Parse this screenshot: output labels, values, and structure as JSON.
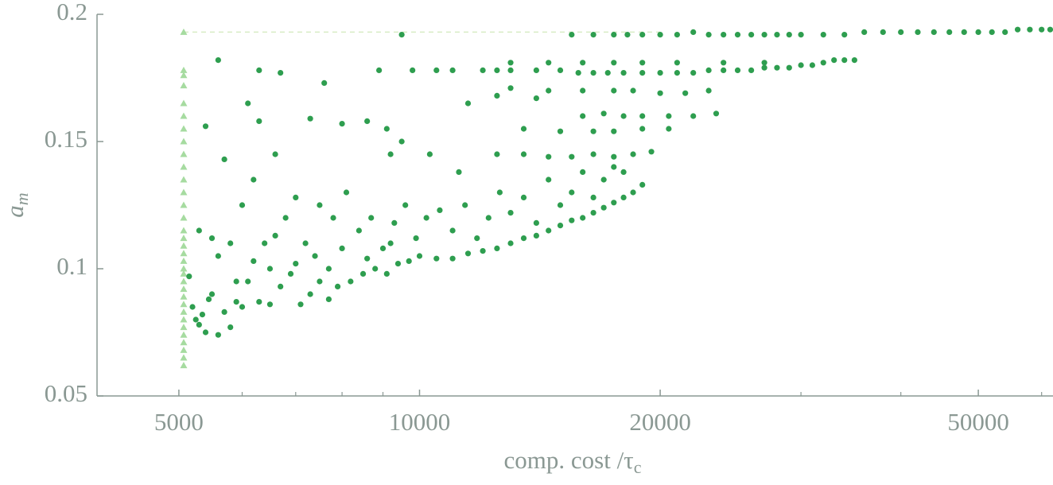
{
  "chart_data": {
    "type": "scatter",
    "xlabel": {
      "text": "comp. cost /τ",
      "subscript": "c"
    },
    "ylabel": {
      "text": "a",
      "subscript": "m"
    },
    "xscale": "log",
    "xlim": [
      3950,
      62000
    ],
    "xticks": [
      5000,
      10000,
      20000,
      50000
    ],
    "xminorticks": [
      6000,
      7000,
      8000,
      9000,
      30000,
      40000,
      60000
    ],
    "ylim": [
      0.05,
      0.2
    ],
    "yticks": [
      0.05,
      0.1,
      0.15,
      0.2
    ],
    "reference_line": {
      "value": 0.193,
      "x": [
        5070,
        20000
      ],
      "color": "#d8ecc4"
    },
    "series": [
      {
        "marker": "triangle",
        "color": "#a6dba0",
        "x": [
          5070,
          5070,
          5070,
          5070,
          5070,
          5070,
          5070,
          5070,
          5070,
          5070,
          5070,
          5070,
          5070,
          5070,
          5070,
          5070,
          5070,
          5070,
          5070,
          5070,
          5070,
          5070,
          5070,
          5070,
          5070,
          5070,
          5070,
          5070,
          5070,
          5070,
          5070,
          5070,
          5070
        ],
        "values": [
          0.062,
          0.065,
          0.068,
          0.071,
          0.074,
          0.077,
          0.08,
          0.083,
          0.086,
          0.089,
          0.092,
          0.095,
          0.098,
          0.1,
          0.103,
          0.106,
          0.109,
          0.112,
          0.115,
          0.12,
          0.125,
          0.13,
          0.135,
          0.14,
          0.145,
          0.15,
          0.155,
          0.16,
          0.165,
          0.172,
          0.176,
          0.178,
          0.193
        ]
      },
      {
        "marker": "circle",
        "color": "#2e9e4f",
        "x": [
          9500,
          15500,
          16500,
          17500,
          18200,
          19000,
          20000,
          21000,
          22000,
          23000,
          24000,
          25000,
          26000,
          27000,
          28000,
          29000,
          30000,
          32000,
          34000,
          36000,
          38000,
          40000,
          42000,
          44000,
          46000,
          48000,
          50000,
          52000,
          54000,
          56000,
          58000,
          60000,
          61500,
          8900,
          9800,
          10500,
          11000,
          12000,
          12500,
          13000,
          14000,
          15000,
          15800,
          16500,
          17200,
          18000,
          19000,
          20000,
          21000,
          22000,
          23000,
          24000,
          25000,
          26000,
          27000,
          28000,
          29000,
          30000,
          31000,
          32000,
          33000,
          34000,
          35000,
          13000,
          14500,
          16000,
          17500,
          19000,
          21000,
          24000,
          27000,
          13000,
          14500,
          16000,
          17500,
          18500,
          20000,
          21500,
          23000,
          16000,
          17000,
          18000,
          19000,
          20500,
          22000,
          23500,
          13500,
          15000,
          16500,
          17500,
          19000,
          20500,
          12500,
          13500,
          14500,
          15500,
          16500,
          17500,
          18500,
          19500,
          5600,
          6300,
          6700,
          7600,
          6100,
          6300,
          5400,
          7300,
          8000,
          8600,
          9100,
          9500,
          10300,
          9200,
          6600,
          5700,
          11500,
          12500,
          14000,
          11200,
          5150,
          5200,
          5250,
          5300,
          5350,
          5400,
          5450,
          5500,
          5600,
          5700,
          5800,
          5900,
          6000,
          6100,
          6200,
          6300,
          6500,
          6700,
          6900,
          7100,
          7300,
          7500,
          7700,
          7900,
          8200,
          8500,
          8800,
          9100,
          9400,
          9700,
          10000,
          10500,
          11000,
          11500,
          12000,
          12500,
          13000,
          13500,
          14000,
          14500,
          15000,
          15500,
          16000,
          16500,
          17000,
          17500,
          18000,
          18500,
          19000,
          5300,
          5500,
          5600,
          5800,
          6000,
          6200,
          6400,
          6600,
          6800,
          7000,
          7200,
          7500,
          7800,
          8100,
          8400,
          8700,
          9000,
          9300,
          9600,
          9900,
          10200,
          10600,
          11000,
          11400,
          11800,
          12200,
          12600,
          13000,
          13500,
          14000,
          14500,
          15000,
          15500,
          16000,
          16500,
          17000,
          17500,
          18000,
          7000,
          7400,
          8000,
          8600,
          9200,
          5900,
          6500,
          7700
        ],
        "values": [
          0.192,
          0.192,
          0.192,
          0.192,
          0.192,
          0.192,
          0.192,
          0.192,
          0.193,
          0.192,
          0.192,
          0.192,
          0.192,
          0.192,
          0.192,
          0.192,
          0.192,
          0.192,
          0.192,
          0.193,
          0.193,
          0.193,
          0.193,
          0.193,
          0.193,
          0.193,
          0.193,
          0.193,
          0.193,
          0.194,
          0.194,
          0.194,
          0.194,
          0.178,
          0.178,
          0.178,
          0.178,
          0.178,
          0.178,
          0.178,
          0.178,
          0.178,
          0.177,
          0.177,
          0.177,
          0.177,
          0.177,
          0.177,
          0.177,
          0.177,
          0.178,
          0.178,
          0.178,
          0.178,
          0.179,
          0.179,
          0.179,
          0.18,
          0.18,
          0.181,
          0.182,
          0.182,
          0.182,
          0.181,
          0.181,
          0.181,
          0.181,
          0.181,
          0.181,
          0.181,
          0.181,
          0.171,
          0.17,
          0.17,
          0.17,
          0.17,
          0.169,
          0.169,
          0.17,
          0.16,
          0.161,
          0.16,
          0.16,
          0.16,
          0.16,
          0.161,
          0.155,
          0.154,
          0.154,
          0.154,
          0.155,
          0.155,
          0.145,
          0.145,
          0.144,
          0.144,
          0.145,
          0.144,
          0.145,
          0.146,
          0.182,
          0.178,
          0.177,
          0.173,
          0.165,
          0.158,
          0.156,
          0.159,
          0.157,
          0.158,
          0.155,
          0.15,
          0.145,
          0.145,
          0.145,
          0.143,
          0.165,
          0.168,
          0.167,
          0.138,
          0.097,
          0.085,
          0.08,
          0.078,
          0.082,
          0.075,
          0.088,
          0.09,
          0.074,
          0.083,
          0.077,
          0.087,
          0.085,
          0.095,
          0.103,
          0.087,
          0.086,
          0.093,
          0.098,
          0.086,
          0.09,
          0.095,
          0.088,
          0.093,
          0.095,
          0.098,
          0.1,
          0.098,
          0.102,
          0.103,
          0.105,
          0.104,
          0.104,
          0.106,
          0.107,
          0.108,
          0.11,
          0.112,
          0.113,
          0.115,
          0.117,
          0.119,
          0.12,
          0.122,
          0.124,
          0.126,
          0.128,
          0.13,
          0.133,
          0.115,
          0.112,
          0.105,
          0.11,
          0.125,
          0.135,
          0.11,
          0.113,
          0.12,
          0.128,
          0.11,
          0.125,
          0.12,
          0.13,
          0.115,
          0.12,
          0.108,
          0.118,
          0.125,
          0.112,
          0.12,
          0.123,
          0.115,
          0.125,
          0.112,
          0.12,
          0.13,
          0.122,
          0.128,
          0.118,
          0.135,
          0.125,
          0.13,
          0.138,
          0.128,
          0.135,
          0.14,
          0.138,
          0.102,
          0.105,
          0.108,
          0.104,
          0.11,
          0.095,
          0.1,
          0.1
        ]
      }
    ]
  }
}
